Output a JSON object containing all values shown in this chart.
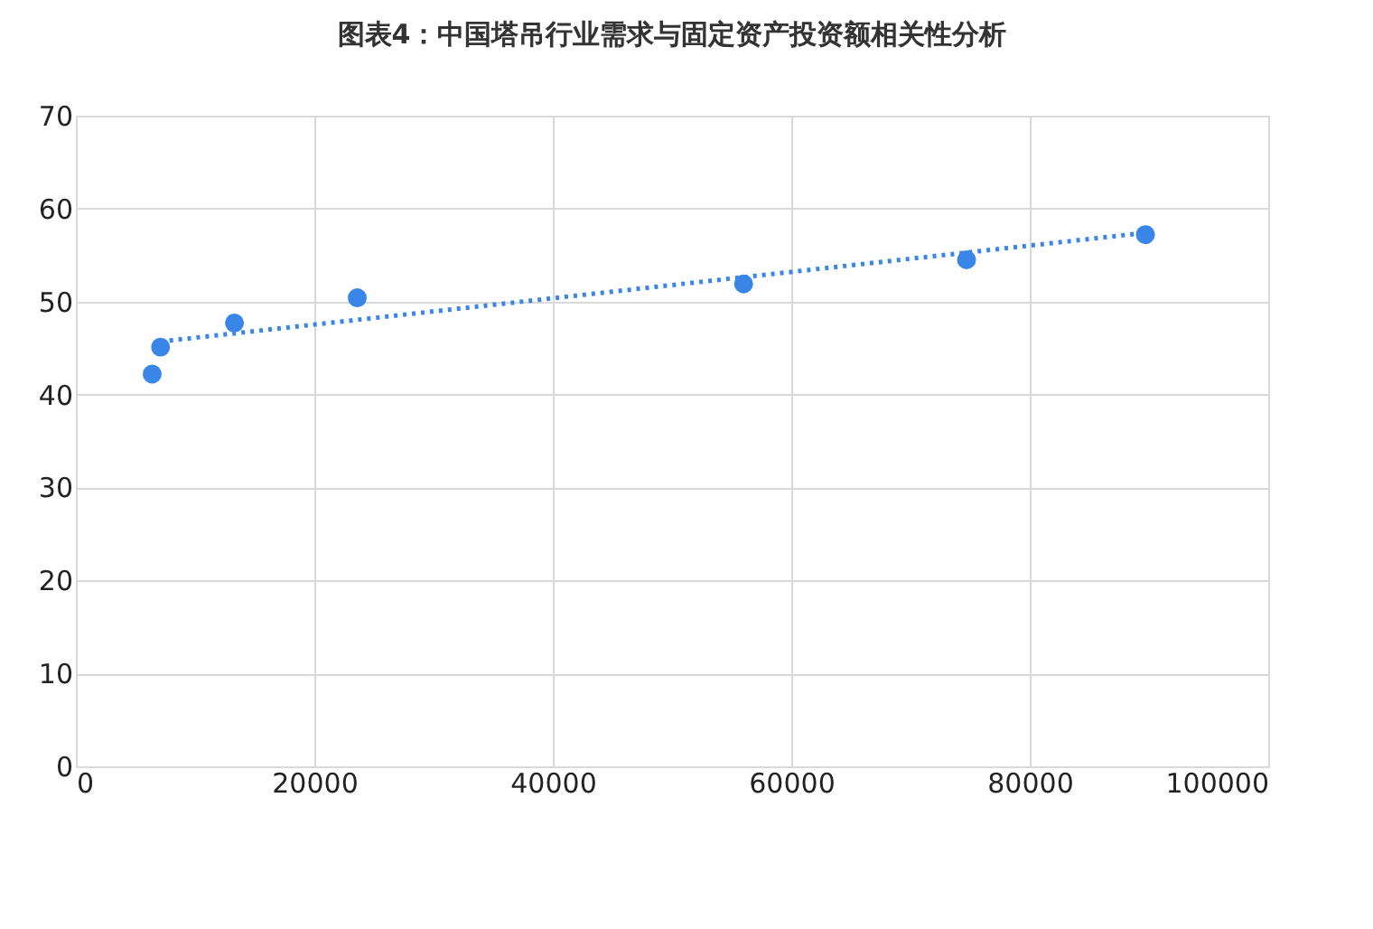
{
  "chart_data": {
    "type": "scatter",
    "title": "图表4：中国塔吊行业需求与固定资产投资额相关性分析",
    "series": [
      {
        "color": "#3a86e8",
        "marker": "circle",
        "x": [
          6400,
          7100,
          13300,
          23600,
          56000,
          74700,
          89700
        ],
        "values": [
          42.2,
          45.1,
          47.7,
          50.4,
          51.9,
          54.5,
          57.2
        ]
      },
      {
        "type": "line",
        "color": "#3a86e8",
        "line_style": "dotted",
        "x": [
          7100,
          89700
        ],
        "values": [
          45.7,
          57.4
        ]
      }
    ],
    "xlim": [
      0,
      100000
    ],
    "xticks": [
      0,
      20000,
      40000,
      60000,
      80000,
      100000
    ],
    "ylim": [
      0,
      70
    ],
    "yticks": [
      0,
      10,
      20,
      30,
      40,
      50,
      60,
      70
    ],
    "grid": true
  }
}
